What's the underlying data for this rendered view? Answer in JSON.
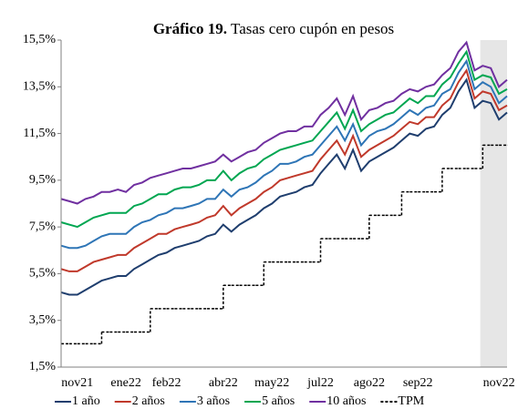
{
  "chart_data": {
    "type": "line",
    "title": [
      "Gráfico 19.",
      "Tasas cero cupón en pesos"
    ],
    "categories": [
      null,
      null,
      "nov21",
      null,
      null,
      null,
      null,
      null,
      "ene22",
      null,
      null,
      null,
      null,
      "feb22",
      null,
      null,
      null,
      null,
      null,
      null,
      "abr22",
      null,
      null,
      null,
      null,
      null,
      "may22",
      null,
      null,
      null,
      null,
      null,
      "jul22",
      null,
      null,
      null,
      null,
      null,
      "ago22",
      null,
      null,
      null,
      null,
      null,
      "sep22",
      null,
      null,
      null,
      null,
      null,
      null,
      null,
      null,
      null,
      "nov22",
      null
    ],
    "series": [
      {
        "name": "1 año",
        "color": "#1f3e6e",
        "values": [
          4.7,
          4.6,
          4.6,
          4.8,
          5.0,
          5.2,
          5.3,
          5.4,
          5.4,
          5.7,
          5.9,
          6.1,
          6.3,
          6.4,
          6.6,
          6.7,
          6.8,
          6.9,
          7.1,
          7.2,
          7.6,
          7.3,
          7.6,
          7.8,
          8.0,
          8.3,
          8.5,
          8.8,
          8.9,
          9.0,
          9.2,
          9.3,
          9.8,
          10.2,
          10.6,
          10.0,
          10.8,
          9.9,
          10.3,
          10.5,
          10.7,
          10.9,
          11.2,
          11.5,
          11.4,
          11.7,
          11.8,
          12.3,
          12.6,
          13.3,
          13.8,
          12.6,
          12.9,
          12.8,
          12.1,
          12.4
        ]
      },
      {
        "name": "2 años",
        "color": "#c0392b",
        "values": [
          5.7,
          5.6,
          5.6,
          5.8,
          6.0,
          6.1,
          6.2,
          6.3,
          6.3,
          6.6,
          6.8,
          7.0,
          7.2,
          7.2,
          7.4,
          7.5,
          7.6,
          7.7,
          7.9,
          8.0,
          8.4,
          8.0,
          8.3,
          8.5,
          8.7,
          9.0,
          9.2,
          9.5,
          9.6,
          9.7,
          9.8,
          9.9,
          10.4,
          10.8,
          11.2,
          10.6,
          11.4,
          10.5,
          10.8,
          11.0,
          11.2,
          11.4,
          11.7,
          12.0,
          11.9,
          12.2,
          12.2,
          12.7,
          13.0,
          13.7,
          14.2,
          13.0,
          13.3,
          13.2,
          12.5,
          12.7
        ]
      },
      {
        "name": "3 años",
        "color": "#2e75b6",
        "values": [
          6.7,
          6.6,
          6.6,
          6.7,
          6.9,
          7.1,
          7.2,
          7.2,
          7.2,
          7.5,
          7.7,
          7.8,
          8.0,
          8.1,
          8.3,
          8.3,
          8.4,
          8.5,
          8.7,
          8.7,
          9.1,
          8.8,
          9.1,
          9.2,
          9.4,
          9.7,
          9.9,
          10.2,
          10.2,
          10.3,
          10.5,
          10.6,
          11.0,
          11.4,
          11.8,
          11.2,
          11.9,
          11.0,
          11.4,
          11.6,
          11.7,
          11.9,
          12.2,
          12.5,
          12.3,
          12.6,
          12.7,
          13.2,
          13.4,
          14.1,
          14.6,
          13.4,
          13.7,
          13.5,
          12.8,
          13.1
        ]
      },
      {
        "name": "5 años",
        "color": "#00a651",
        "values": [
          7.7,
          7.6,
          7.5,
          7.7,
          7.9,
          8.0,
          8.1,
          8.1,
          8.1,
          8.4,
          8.5,
          8.7,
          8.9,
          8.9,
          9.1,
          9.2,
          9.2,
          9.3,
          9.5,
          9.5,
          9.9,
          9.5,
          9.8,
          10.0,
          10.1,
          10.4,
          10.6,
          10.8,
          10.9,
          11.0,
          11.1,
          11.2,
          11.6,
          12.0,
          12.4,
          11.7,
          12.5,
          11.6,
          11.9,
          12.1,
          12.3,
          12.4,
          12.7,
          13.0,
          12.8,
          13.1,
          13.1,
          13.6,
          13.9,
          14.5,
          15.0,
          13.8,
          14.0,
          13.9,
          13.2,
          13.4
        ]
      },
      {
        "name": "10 años",
        "color": "#7030a0",
        "values": [
          8.7,
          8.6,
          8.5,
          8.7,
          8.8,
          9.0,
          9.0,
          9.1,
          9.0,
          9.3,
          9.4,
          9.6,
          9.7,
          9.8,
          9.9,
          10.0,
          10.0,
          10.1,
          10.2,
          10.3,
          10.6,
          10.3,
          10.5,
          10.7,
          10.8,
          11.1,
          11.3,
          11.5,
          11.6,
          11.6,
          11.8,
          11.8,
          12.3,
          12.6,
          13.0,
          12.3,
          13.1,
          12.1,
          12.5,
          12.6,
          12.8,
          12.9,
          13.2,
          13.4,
          13.3,
          13.5,
          13.6,
          14.0,
          14.3,
          15.0,
          15.4,
          14.2,
          14.4,
          14.3,
          13.5,
          13.8
        ]
      },
      {
        "name": "TPM",
        "color": "#000000",
        "line_style": "dashed",
        "step": true,
        "values": [
          2.5,
          2.5,
          2.5,
          2.5,
          2.5,
          3.0,
          3.0,
          3.0,
          3.0,
          3.0,
          3.0,
          4.0,
          4.0,
          4.0,
          4.0,
          4.0,
          4.0,
          4.0,
          4.0,
          4.0,
          5.0,
          5.0,
          5.0,
          5.0,
          5.0,
          6.0,
          6.0,
          6.0,
          6.0,
          6.0,
          6.0,
          6.0,
          7.0,
          7.0,
          7.0,
          7.0,
          7.0,
          7.0,
          8.0,
          8.0,
          8.0,
          8.0,
          9.0,
          9.0,
          9.0,
          9.0,
          9.0,
          10.0,
          10.0,
          10.0,
          10.0,
          10.0,
          11.0,
          11.0,
          11.0,
          11.0
        ]
      }
    ],
    "ylim": [
      1.5,
      15.5
    ],
    "yticks": [
      {
        "value": 1.5,
        "label": "1,5%"
      },
      {
        "value": 3.5,
        "label": "3,5%"
      },
      {
        "value": 5.5,
        "label": "5,5%"
      },
      {
        "value": 7.5,
        "label": "7,5%"
      },
      {
        "value": 9.5,
        "label": "9,5%"
      },
      {
        "value": 11.5,
        "label": "11,5%"
      },
      {
        "value": 13.5,
        "label": "13,5%"
      },
      {
        "value": 15.5,
        "label": "15,5%"
      }
    ],
    "grid": false,
    "legend": "bottom"
  }
}
